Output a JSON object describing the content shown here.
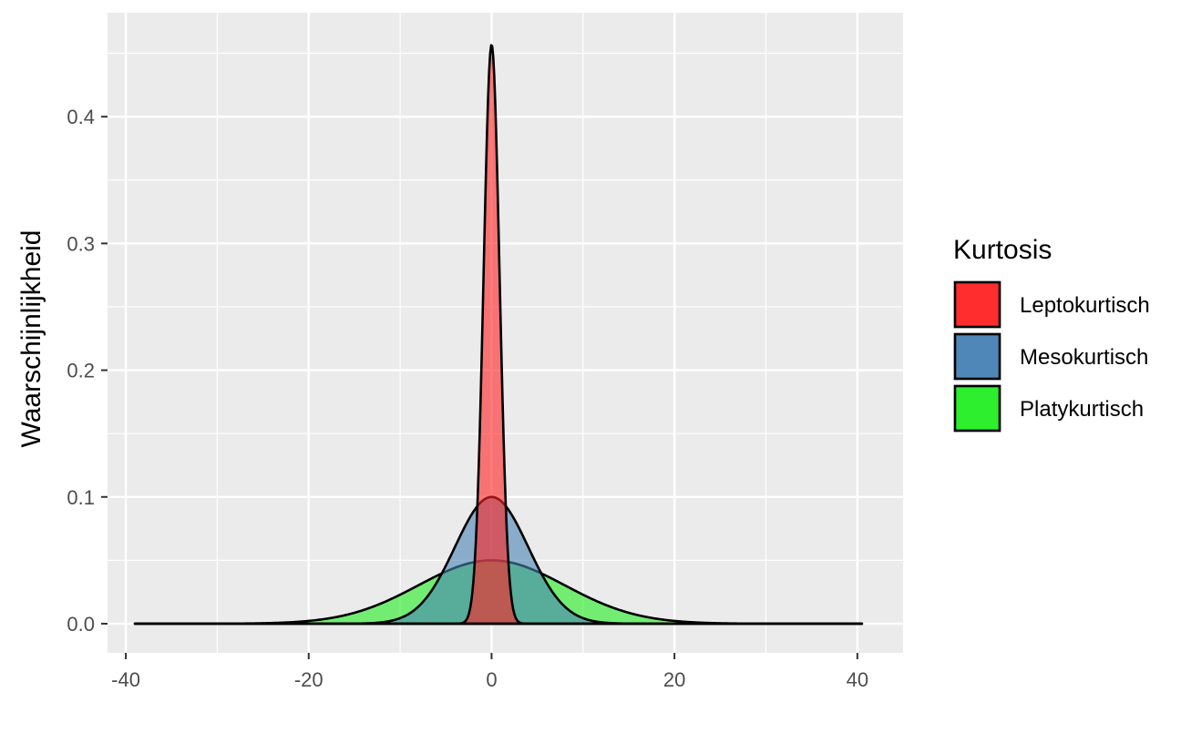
{
  "chart_data": {
    "type": "area",
    "xlabel": "",
    "ylabel": "Waarschijnlijkheid",
    "xlim": [
      -42,
      45
    ],
    "ylim": [
      -0.023,
      0.482
    ],
    "x_ticks": [
      -40,
      -20,
      0,
      20,
      40
    ],
    "x_tick_labels": [
      "-40",
      "-20",
      "0",
      "20",
      "40"
    ],
    "y_ticks": [
      0.0,
      0.1,
      0.2,
      0.3,
      0.4
    ],
    "y_tick_labels": [
      "0.0",
      "0.1",
      "0.2",
      "0.3",
      "0.4"
    ],
    "x_domain": [
      -39,
      40.5
    ],
    "grid": true,
    "legend": {
      "title": "Kurtosis",
      "position": "right"
    },
    "series": [
      {
        "name": "Platykurtisch",
        "distribution": "normal",
        "mean": 0,
        "sd": 8,
        "peak": 0.05,
        "color": "#22ee22"
      },
      {
        "name": "Mesokurtisch",
        "distribution": "normal",
        "mean": 0,
        "sd": 4,
        "peak": 0.1,
        "color": "#4682b4"
      },
      {
        "name": "Leptokurtisch",
        "distribution": "normal",
        "mean": 0,
        "sd": 0.87,
        "peak": 0.457,
        "color": "#ff2222"
      }
    ],
    "legend_order": [
      "Leptokurtisch",
      "Mesokurtisch",
      "Platykurtisch"
    ]
  }
}
